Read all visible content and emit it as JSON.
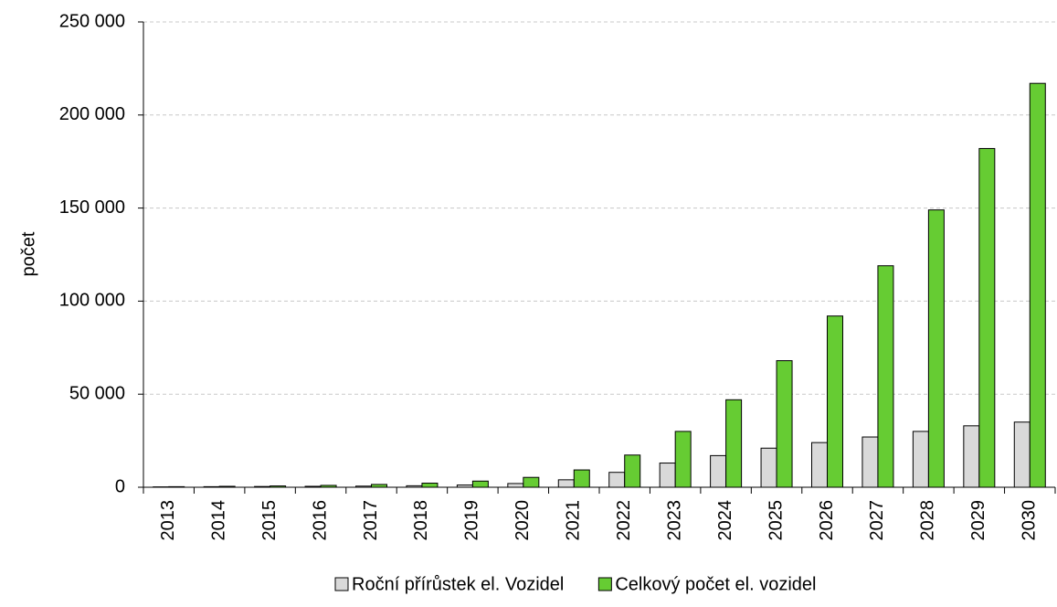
{
  "chart_data": {
    "type": "bar",
    "y_label": "počet",
    "categories": [
      "2013",
      "2014",
      "2015",
      "2016",
      "2017",
      "2018",
      "2019",
      "2020",
      "2021",
      "2022",
      "2023",
      "2024",
      "2025",
      "2026",
      "2027",
      "2028",
      "2029",
      "2030"
    ],
    "series": [
      {
        "name": "Roční přírůstek el. Vozidel",
        "color": "#d9d9d9",
        "values": [
          200,
          300,
          400,
          500,
          600,
          800,
          1200,
          2000,
          4000,
          8000,
          13000,
          17000,
          21000,
          24000,
          27000,
          30000,
          33000,
          35000
        ]
      },
      {
        "name": "Celkový počet el. vozidel",
        "color": "#66cc33",
        "values": [
          300,
          500,
          700,
          1000,
          1500,
          2200,
          3300,
          5300,
          9300,
          17300,
          30000,
          47000,
          68000,
          92000,
          119000,
          149000,
          182000,
          217000
        ]
      }
    ],
    "ylim": [
      0,
      250000
    ],
    "yticks": [
      0,
      {
        "value": 50000,
        "label": "50 000"
      },
      {
        "value": 100000,
        "label": "100 000"
      },
      {
        "value": 150000,
        "label": "150 000"
      },
      {
        "value": 200000,
        "label": "200 000"
      },
      {
        "value": 250000,
        "label": "250 000"
      }
    ],
    "grid": true,
    "legend": "bottom"
  }
}
